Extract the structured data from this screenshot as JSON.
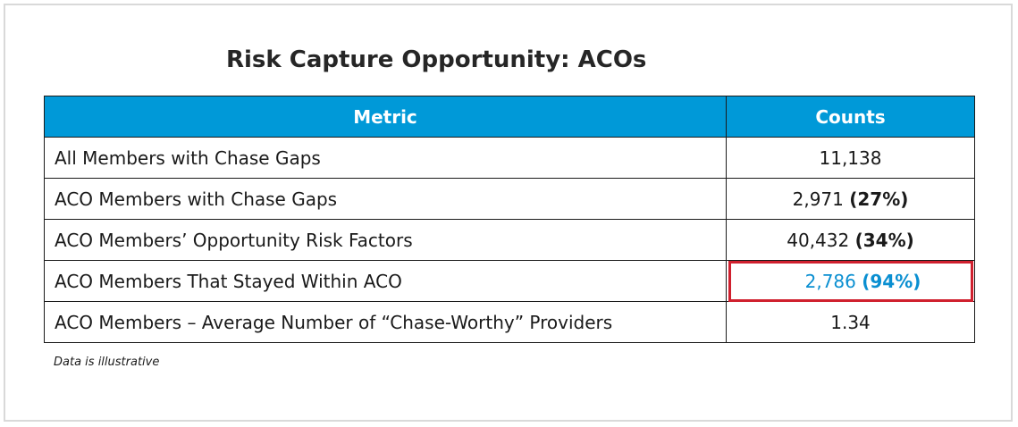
{
  "title": "Risk Capture Opportunity: ACOs",
  "table": {
    "headers": [
      "Metric",
      "Counts"
    ],
    "rows": [
      {
        "metric": "All Members with Chase Gaps",
        "count": "11,138",
        "pct": ""
      },
      {
        "metric": "ACO Members with Chase Gaps",
        "count": "2,971",
        "pct": "(27%)"
      },
      {
        "metric": "ACO Members’ Opportunity Risk Factors",
        "count": "40,432",
        "pct": "(34%)"
      },
      {
        "metric": "ACO Members That Stayed Within ACO",
        "count": "2,786",
        "pct": "(94%)"
      },
      {
        "metric": "ACO Members – Average Number of “Chase-Worthy” Providers",
        "count": "1.34",
        "pct": ""
      }
    ]
  },
  "note": "Data is illustrative",
  "colors": {
    "header_bg": "#0099d8",
    "highlight_text": "#0a8fd1",
    "highlight_border": "#d0202e"
  }
}
